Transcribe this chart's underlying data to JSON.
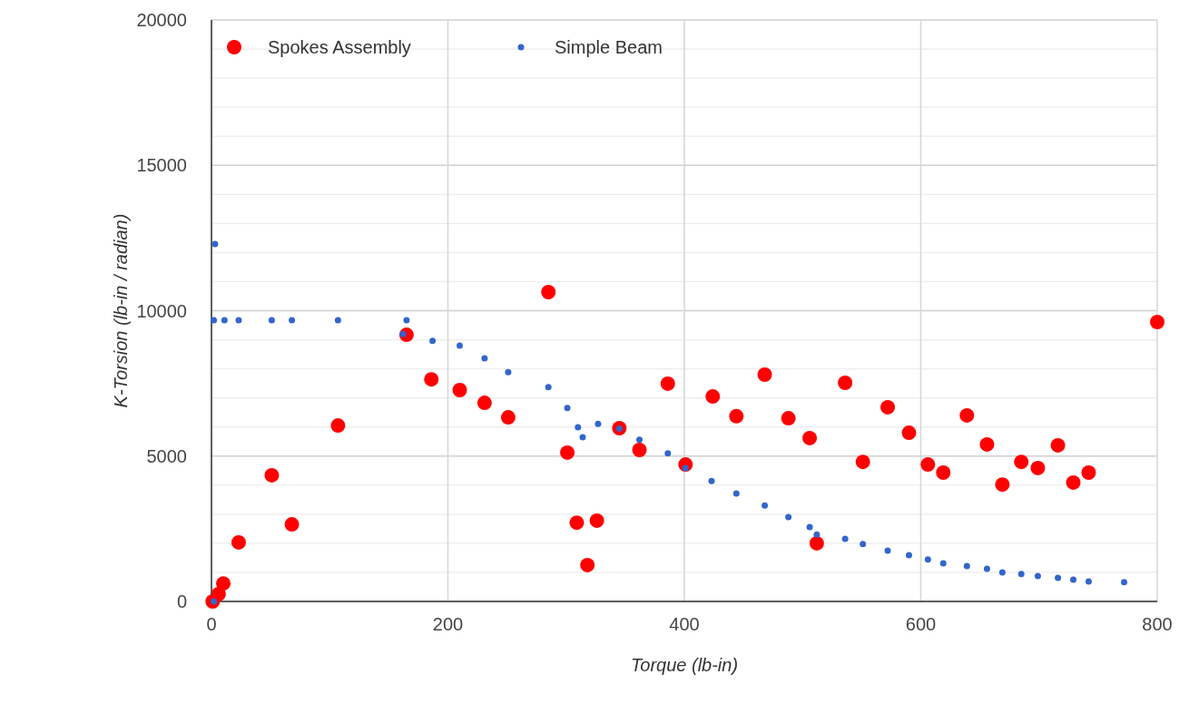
{
  "chart_data": {
    "type": "scatter",
    "xlabel": "Torque (lb-in)",
    "ylabel": "K-Torsion (lb-in / radian)",
    "xlim": [
      0,
      800
    ],
    "ylim": [
      0,
      20000
    ],
    "xticks": [
      0,
      200,
      400,
      600,
      800
    ],
    "yticks": [
      0,
      {
        "value": 1000,
        "label": null
      },
      {
        "value": 2000,
        "label": null
      },
      {
        "value": 3000,
        "label": null
      },
      {
        "value": 4000,
        "label": null
      },
      5000,
      {
        "value": 6000,
        "label": null
      },
      {
        "value": 7000,
        "label": null
      },
      {
        "value": 8000,
        "label": null
      },
      {
        "value": 9000,
        "label": null
      },
      10000,
      {
        "value": 11000,
        "label": null
      },
      {
        "value": 12000,
        "label": null
      },
      {
        "value": 13000,
        "label": null
      },
      {
        "value": 14000,
        "label": null
      },
      15000,
      {
        "value": 16000,
        "label": null
      },
      {
        "value": 17000,
        "label": null
      },
      {
        "value": 18000,
        "label": null
      },
      {
        "value": 19000,
        "label": null
      },
      20000
    ],
    "grid": true,
    "legend": "top left",
    "marker": "circle",
    "series": [
      {
        "name": "Spokes Assembly",
        "color": "#ff0000",
        "x": [
          1,
          6,
          10,
          23,
          51,
          68,
          107,
          165,
          186,
          210,
          231,
          251,
          285,
          301,
          309,
          318,
          326,
          345,
          362,
          386,
          401,
          424,
          444,
          468,
          488,
          506,
          512,
          536,
          551,
          572,
          590,
          606,
          619,
          639,
          656,
          669,
          685,
          699,
          716,
          729,
          742,
          800
        ],
        "values": [
          0,
          250,
          620,
          2030,
          4340,
          2650,
          6050,
          9170,
          7640,
          7270,
          6830,
          6330,
          10640,
          5120,
          2710,
          1250,
          2780,
          5960,
          5210,
          7490,
          4710,
          7050,
          6370,
          7800,
          6300,
          5620,
          2000,
          7520,
          4800,
          6680,
          5800,
          4710,
          4430,
          6400,
          5400,
          4020,
          4800,
          4590,
          5370,
          4090,
          4430,
          9610
        ]
      },
      {
        "name": "Simple Beam",
        "color": "#3366cc",
        "x": [
          2,
          3,
          2,
          11,
          23,
          51,
          68,
          107,
          165,
          162,
          187,
          210,
          231,
          251,
          285,
          301,
          310,
          314,
          327,
          345,
          362,
          386,
          401,
          423,
          444,
          468,
          488,
          506,
          512,
          536,
          551,
          572,
          590,
          606,
          619,
          639,
          656,
          669,
          685,
          699,
          716,
          729,
          742,
          772
        ],
        "values": [
          0,
          12290,
          9670,
          9670,
          9670,
          9670,
          9670,
          9670,
          9670,
          9200,
          8960,
          8800,
          8360,
          7890,
          7370,
          6650,
          5990,
          5650,
          6110,
          5940,
          5560,
          5090,
          4590,
          4140,
          3710,
          3300,
          2900,
          2560,
          2300,
          2150,
          1970,
          1750,
          1590,
          1440,
          1310,
          1220,
          1120,
          1000,
          940,
          870,
          810,
          750,
          690,
          660
        ]
      }
    ]
  }
}
